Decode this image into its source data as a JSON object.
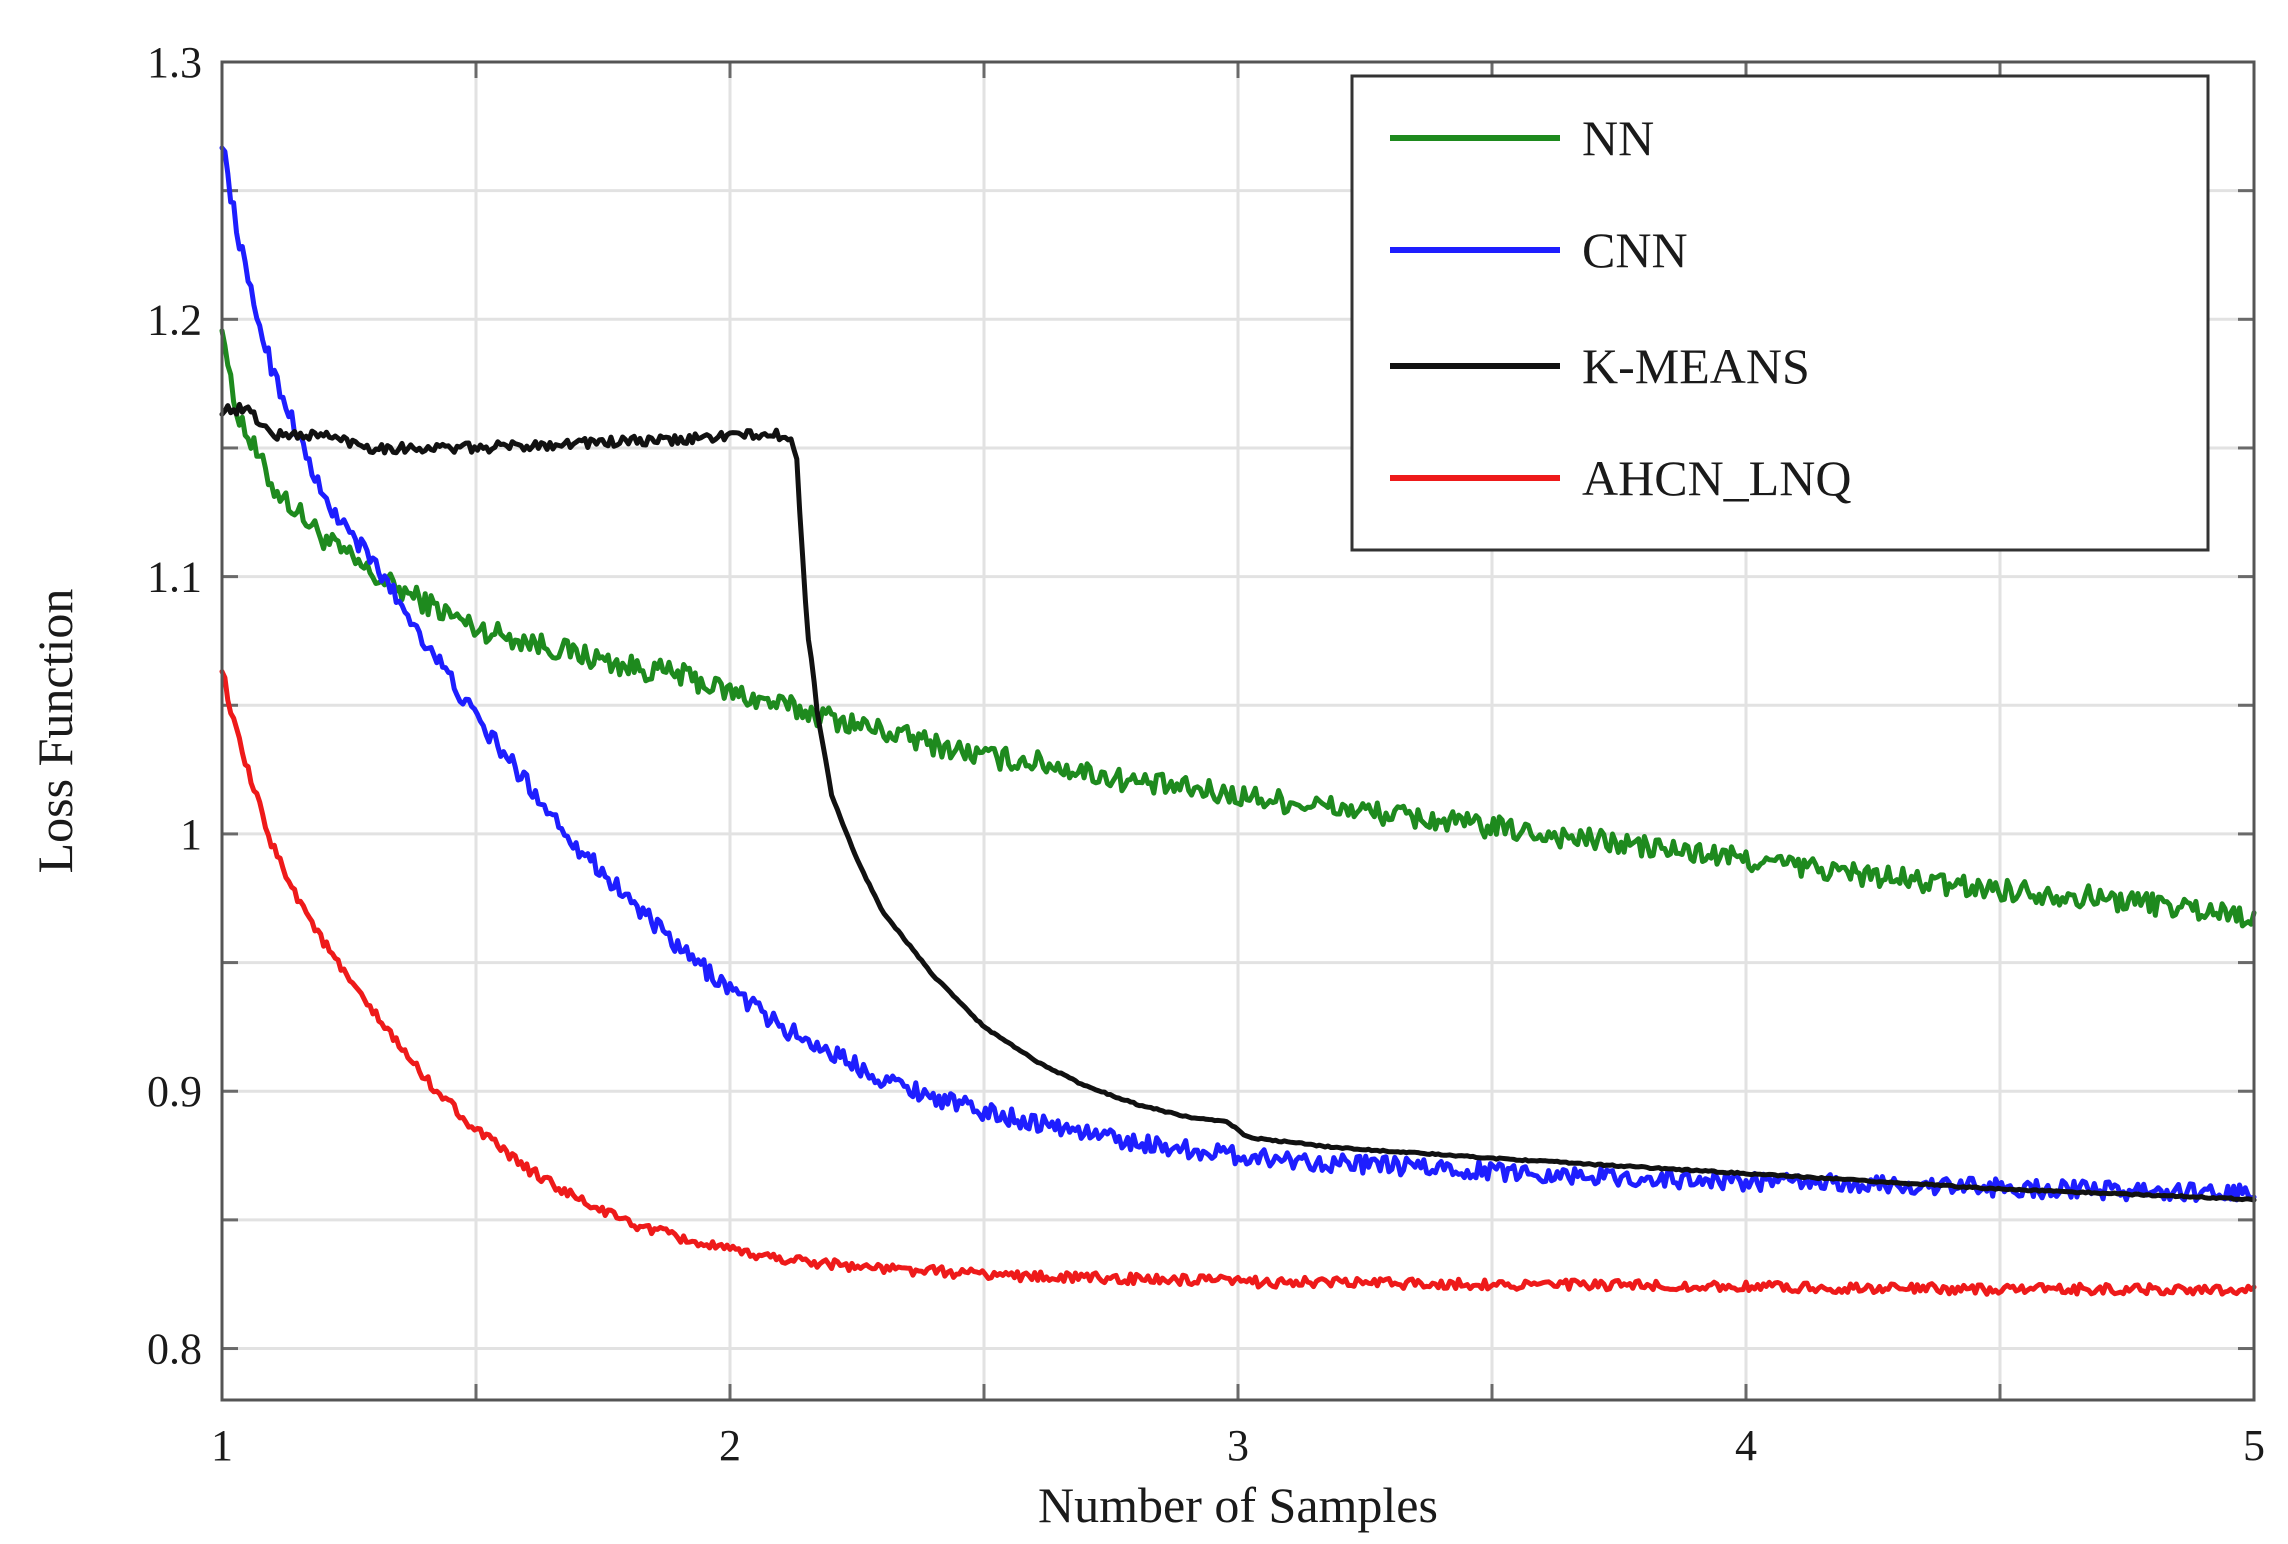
{
  "chart_data": {
    "type": "line",
    "title": "",
    "xlabel": "Number of Samples",
    "ylabel": "Loss Function",
    "xlim": [
      1,
      5
    ],
    "ylim": [
      0.78,
      1.3
    ],
    "grid": true,
    "legend_position": "top-right",
    "x_ticks": [
      {
        "value": 1,
        "label": "1"
      },
      {
        "value": 2,
        "label": "2"
      },
      {
        "value": 3,
        "label": "3"
      },
      {
        "value": 4,
        "label": "4"
      },
      {
        "value": 5,
        "label": "5"
      }
    ],
    "y_ticks": [
      {
        "value": 0.8,
        "label": "0.8"
      },
      {
        "value": 0.9,
        "label": "0.9"
      },
      {
        "value": 1.0,
        "label": "1"
      },
      {
        "value": 1.1,
        "label": "1.1"
      },
      {
        "value": 1.2,
        "label": "1.2"
      },
      {
        "value": 1.3,
        "label": "1.3"
      }
    ],
    "series": [
      {
        "name": "NN",
        "color": "#1e8a1e",
        "x": [
          1.0,
          1.02,
          1.05,
          1.1,
          1.15,
          1.2,
          1.3,
          1.4,
          1.5,
          1.6,
          1.7,
          1.8,
          1.9,
          2.0,
          2.1,
          2.2,
          2.3,
          2.4,
          2.5,
          2.6,
          2.8,
          3.0,
          3.2,
          3.4,
          3.6,
          3.8,
          4.0,
          4.2,
          4.4,
          4.6,
          4.8,
          5.0
        ],
        "values": [
          1.2,
          1.17,
          1.155,
          1.135,
          1.125,
          1.115,
          1.1,
          1.09,
          1.08,
          1.075,
          1.07,
          1.065,
          1.062,
          1.055,
          1.05,
          1.045,
          1.04,
          1.035,
          1.03,
          1.028,
          1.02,
          1.015,
          1.01,
          1.005,
          1.0,
          0.995,
          0.99,
          0.985,
          0.98,
          0.977,
          0.973,
          0.968
        ]
      },
      {
        "name": "CNN",
        "color": "#1e1eff",
        "x": [
          1.0,
          1.02,
          1.05,
          1.1,
          1.15,
          1.2,
          1.3,
          1.4,
          1.5,
          1.6,
          1.7,
          1.8,
          1.9,
          2.0,
          2.1,
          2.2,
          2.3,
          2.4,
          2.5,
          2.6,
          2.8,
          3.0,
          3.2,
          3.4,
          3.6,
          3.8,
          4.0,
          4.2,
          4.4,
          4.6,
          4.8,
          5.0
        ],
        "values": [
          1.27,
          1.245,
          1.215,
          1.18,
          1.155,
          1.13,
          1.105,
          1.075,
          1.045,
          1.02,
          0.995,
          0.975,
          0.955,
          0.94,
          0.925,
          0.915,
          0.905,
          0.898,
          0.892,
          0.888,
          0.88,
          0.875,
          0.872,
          0.87,
          0.868,
          0.866,
          0.865,
          0.864,
          0.863,
          0.862,
          0.861,
          0.86
        ]
      },
      {
        "name": "K-MEANS",
        "color": "#111111",
        "x": [
          1.0,
          1.05,
          1.1,
          1.2,
          1.3,
          1.5,
          1.7,
          1.9,
          2.0,
          2.1,
          2.13,
          2.15,
          2.17,
          2.2,
          2.25,
          2.3,
          2.4,
          2.5,
          2.6,
          2.7,
          2.8,
          2.9,
          2.98,
          3.02,
          3.2,
          3.5,
          4.0,
          4.5,
          5.0
        ],
        "values": [
          1.165,
          1.165,
          1.155,
          1.155,
          1.15,
          1.15,
          1.152,
          1.153,
          1.155,
          1.155,
          1.15,
          1.085,
          1.05,
          1.015,
          0.99,
          0.97,
          0.945,
          0.925,
          0.912,
          0.902,
          0.895,
          0.89,
          0.888,
          0.882,
          0.878,
          0.874,
          0.868,
          0.862,
          0.858
        ]
      },
      {
        "name": "AHCN_LNQ",
        "color": "#ee1a1a",
        "x": [
          1.0,
          1.02,
          1.05,
          1.1,
          1.15,
          1.2,
          1.25,
          1.3,
          1.4,
          1.5,
          1.6,
          1.7,
          1.8,
          1.9,
          2.0,
          2.1,
          2.2,
          2.3,
          2.4,
          2.6,
          2.8,
          3.0,
          3.5,
          4.0,
          4.5,
          5.0
        ],
        "values": [
          1.065,
          1.045,
          1.025,
          0.995,
          0.975,
          0.958,
          0.943,
          0.93,
          0.905,
          0.885,
          0.87,
          0.858,
          0.849,
          0.843,
          0.838,
          0.835,
          0.833,
          0.831,
          0.83,
          0.828,
          0.827,
          0.826,
          0.825,
          0.824,
          0.823,
          0.823
        ]
      }
    ]
  }
}
